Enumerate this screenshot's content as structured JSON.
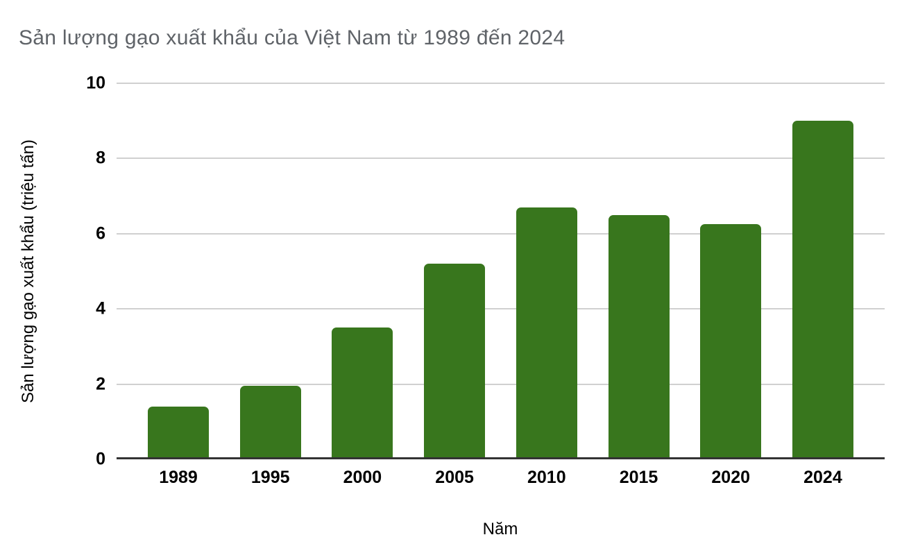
{
  "chart_data": {
    "type": "bar",
    "title": "Sản lượng gạo xuất khẩu của Việt Nam từ 1989 đến 2024",
    "categories": [
      "1989",
      "1995",
      "2000",
      "2005",
      "2010",
      "2015",
      "2020",
      "2024"
    ],
    "values": [
      1.4,
      1.95,
      3.5,
      5.2,
      6.7,
      6.5,
      6.25,
      9.0
    ],
    "xlabel": "Năm",
    "ylabel": "Sản lượng gạo xuất khẩu (triệu tấn)",
    "ylim": [
      0,
      10
    ],
    "yticks": [
      0,
      2,
      4,
      6,
      8,
      10
    ],
    "grid": true,
    "legend": "none"
  },
  "colors": {
    "bar": "#38761d",
    "title_text": "#5f6368",
    "axis_text": "#000000",
    "gridline": "#d0d0d0",
    "axis_line": "#333333",
    "background": "#ffffff"
  }
}
